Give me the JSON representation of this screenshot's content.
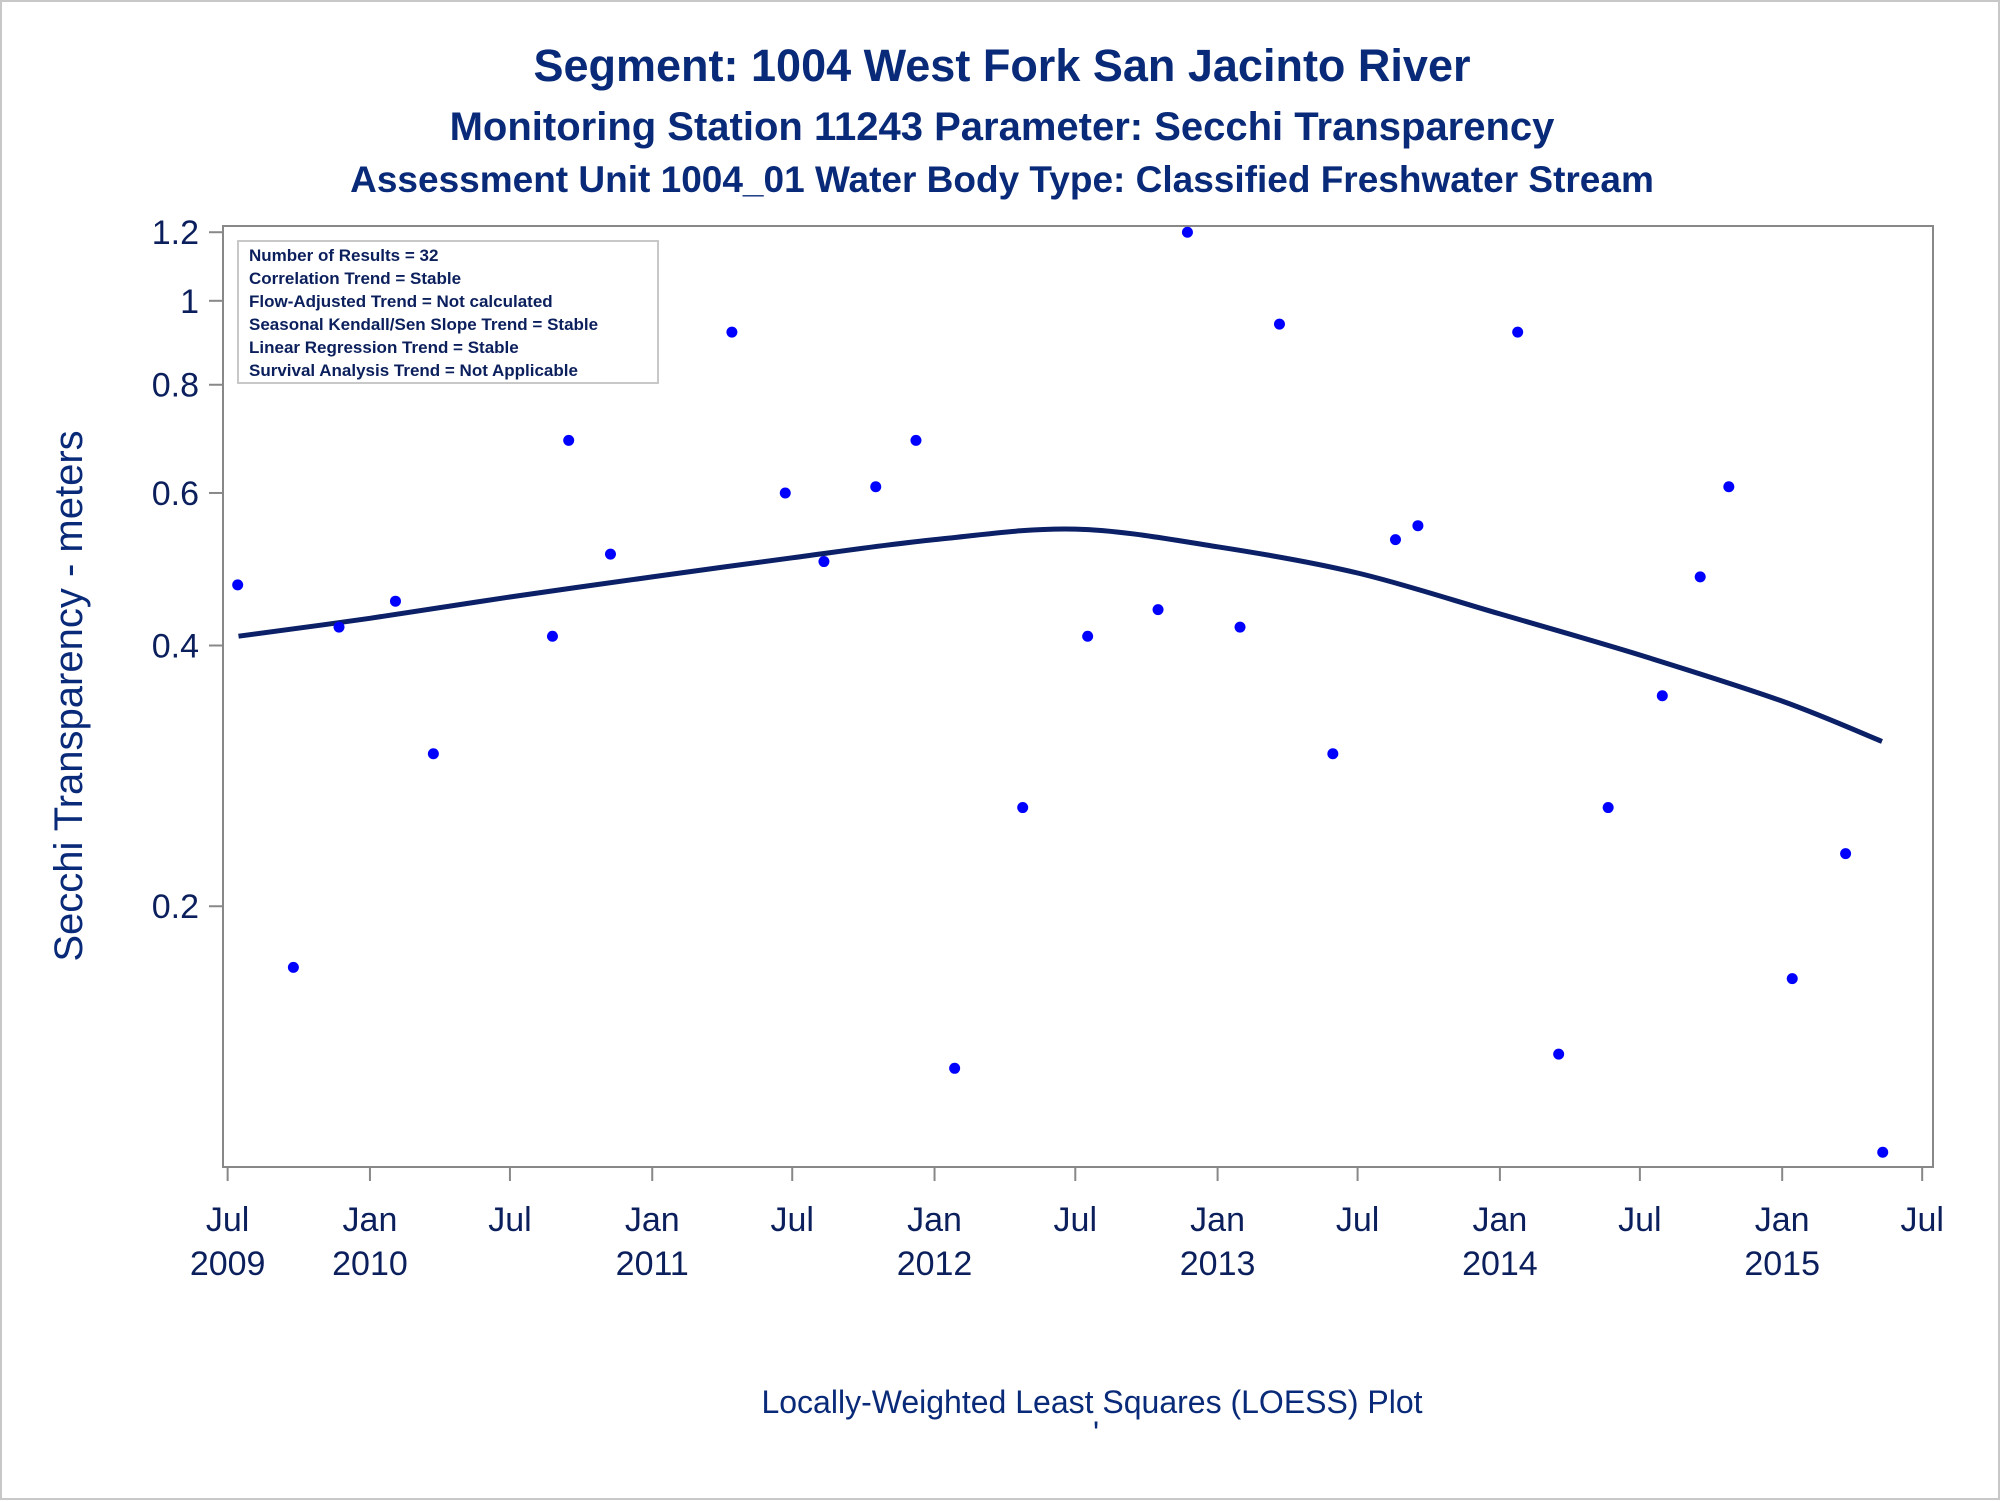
{
  "titles": {
    "line1": "Segment: 1004  West Fork San Jacinto River",
    "line2": "Monitoring Station 11243 Parameter: Secchi Transparency",
    "line3": "Assessment Unit 1004_01   Water Body Type: Classified Freshwater Stream"
  },
  "stats_box": {
    "lines": [
      "Number of Results = 32",
      "Correlation Trend = Stable",
      "Flow-Adjusted Trend = Not calculated",
      "Seasonal Kendall/Sen Slope Trend = Stable",
      "Linear Regression Trend = Stable",
      "Survival Analysis Trend = Not Applicable"
    ]
  },
  "footnote": "Locally-Weighted Least Squares (LOESS) Plot",
  "footnote_mark": "'",
  "colors": {
    "title": "#092a78",
    "points": "#0000ff",
    "loess": "#0b2066",
    "axis": "#888888",
    "frame": "#c8c8c8"
  },
  "chart_data": {
    "type": "scatter",
    "ylabel": "Secchi Transparency - meters",
    "y_scale": "log",
    "ylim": [
      0.1,
      1.22
    ],
    "y_ticks": [
      {
        "value": 0.2,
        "label": "0.2"
      },
      {
        "value": 0.4,
        "label": "0.4"
      },
      {
        "value": 0.6,
        "label": "0.6"
      },
      {
        "value": 0.8,
        "label": "0.8"
      },
      {
        "value": 1.0,
        "label": "1"
      },
      {
        "value": 1.2,
        "label": "1.2"
      }
    ],
    "x_axis_type": "date",
    "xlim": [
      "2009-06-25",
      "2015-07-15"
    ],
    "x_ticks": [
      {
        "date": "2009-07-01",
        "label": "Jul",
        "year": "2009"
      },
      {
        "date": "2010-01-01",
        "label": "Jan",
        "year": "2010"
      },
      {
        "date": "2010-07-01",
        "label": "Jul",
        "year": ""
      },
      {
        "date": "2011-01-01",
        "label": "Jan",
        "year": "2011"
      },
      {
        "date": "2011-07-01",
        "label": "Jul",
        "year": ""
      },
      {
        "date": "2012-01-01",
        "label": "Jan",
        "year": "2012"
      },
      {
        "date": "2012-07-01",
        "label": "Jul",
        "year": ""
      },
      {
        "date": "2013-01-01",
        "label": "Jan",
        "year": "2013"
      },
      {
        "date": "2013-07-01",
        "label": "Jul",
        "year": ""
      },
      {
        "date": "2014-01-01",
        "label": "Jan",
        "year": "2014"
      },
      {
        "date": "2014-07-01",
        "label": "Jul",
        "year": ""
      },
      {
        "date": "2015-01-01",
        "label": "Jan",
        "year": "2015"
      },
      {
        "date": "2015-07-01",
        "label": "Jul",
        "year": ""
      }
    ],
    "points": [
      {
        "x": "2009-07-14",
        "y": 0.47
      },
      {
        "x": "2009-09-24",
        "y": 0.17
      },
      {
        "x": "2009-11-22",
        "y": 0.42
      },
      {
        "x": "2010-02-03",
        "y": 0.45
      },
      {
        "x": "2010-03-24",
        "y": 0.3
      },
      {
        "x": "2010-08-25",
        "y": 0.41
      },
      {
        "x": "2010-09-15",
        "y": 0.69
      },
      {
        "x": "2010-11-08",
        "y": 0.51
      },
      {
        "x": "2011-04-14",
        "y": 0.92
      },
      {
        "x": "2011-06-22",
        "y": 0.6
      },
      {
        "x": "2011-08-11",
        "y": 0.5
      },
      {
        "x": "2011-10-17",
        "y": 0.61
      },
      {
        "x": "2011-12-08",
        "y": 0.69
      },
      {
        "x": "2012-01-27",
        "y": 0.13
      },
      {
        "x": "2012-04-24",
        "y": 0.26
      },
      {
        "x": "2012-07-17",
        "y": 0.41
      },
      {
        "x": "2012-10-16",
        "y": 0.44
      },
      {
        "x": "2012-11-23",
        "y": 1.2
      },
      {
        "x": "2013-01-30",
        "y": 0.42
      },
      {
        "x": "2013-03-22",
        "y": 0.94
      },
      {
        "x": "2013-05-30",
        "y": 0.3
      },
      {
        "x": "2013-08-19",
        "y": 0.53
      },
      {
        "x": "2013-09-17",
        "y": 0.55
      },
      {
        "x": "2014-01-24",
        "y": 0.92
      },
      {
        "x": "2014-03-18",
        "y": 0.135
      },
      {
        "x": "2014-05-21",
        "y": 0.26
      },
      {
        "x": "2014-07-30",
        "y": 0.35
      },
      {
        "x": "2014-09-17",
        "y": 0.48
      },
      {
        "x": "2014-10-24",
        "y": 0.61
      },
      {
        "x": "2015-01-14",
        "y": 0.165
      },
      {
        "x": "2015-03-24",
        "y": 0.23
      },
      {
        "x": "2015-05-11",
        "y": 0.104
      }
    ],
    "loess": [
      {
        "x": "2009-07-15",
        "y": 0.41
      },
      {
        "x": "2010-01-01",
        "y": 0.43
      },
      {
        "x": "2010-07-01",
        "y": 0.455
      },
      {
        "x": "2011-01-01",
        "y": 0.48
      },
      {
        "x": "2011-07-01",
        "y": 0.505
      },
      {
        "x": "2012-01-01",
        "y": 0.53
      },
      {
        "x": "2012-07-01",
        "y": 0.545
      },
      {
        "x": "2013-01-01",
        "y": 0.52
      },
      {
        "x": "2013-07-01",
        "y": 0.485
      },
      {
        "x": "2014-01-01",
        "y": 0.435
      },
      {
        "x": "2014-07-01",
        "y": 0.39
      },
      {
        "x": "2015-01-01",
        "y": 0.345
      },
      {
        "x": "2015-05-10",
        "y": 0.31
      }
    ]
  }
}
